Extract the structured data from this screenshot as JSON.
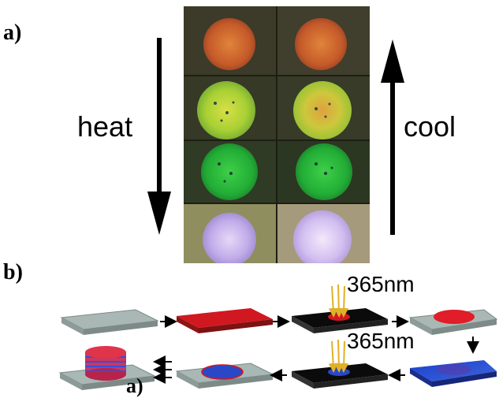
{
  "panel_a_label": "a)",
  "panel_b_label": "b)",
  "heat_label": "heat",
  "cool_label": "cool",
  "wavelength_top": "365nm",
  "wavelength_bottom": "365nm",
  "stray_label": "a)",
  "colors": {
    "orange_spot": "#c8642e",
    "yellow_green_spot": "#b9d23a",
    "green_spot": "#29b53c",
    "violet_spot": "#c7b4e6",
    "substrate_gray": "#9eafac",
    "red_film": "#d11820",
    "black_film": "#0b0b0b",
    "blue_film": "#2a47c8",
    "uv_arrow": "#e0b027"
  }
}
